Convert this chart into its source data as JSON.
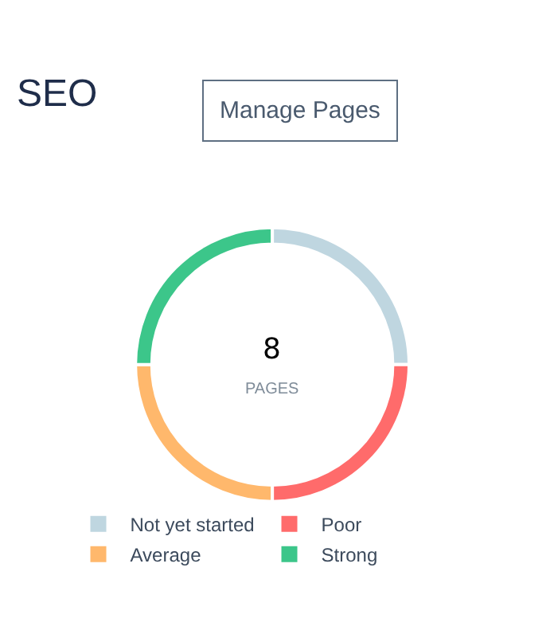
{
  "chart_data": {
    "type": "donut",
    "title": "SEO",
    "categories": [
      "Not yet started",
      "Poor",
      "Average",
      "Strong"
    ],
    "values": [
      25,
      25,
      25,
      25
    ],
    "colors": [
      "#bfd6e0",
      "#ff6b6b",
      "#ffb86c",
      "#3cc68a"
    ],
    "annotations": [
      "Manage Pages",
      "8",
      "PAGES"
    ],
    "legend": "bottom"
  }
}
